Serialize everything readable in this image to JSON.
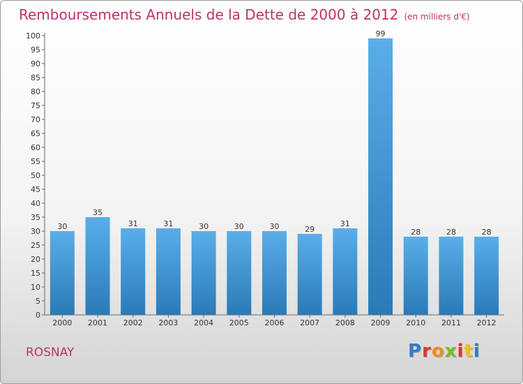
{
  "header": {
    "title": "Remboursements Annuels de la Dette de 2000 à 2012",
    "subtitle": "(en milliers d'€)"
  },
  "footer": {
    "commune": "ROSNAY",
    "logo": "Proxiti"
  },
  "colors": {
    "title": "#c0306a",
    "bar_top": "#5aaee8",
    "bar_bottom": "#2a7ab8",
    "logo_letters": [
      "#2f7dc8",
      "#e2342a",
      "#f08c1a",
      "#7ab829",
      "#e2342a",
      "#f0c01a",
      "#2f7dc8"
    ]
  },
  "chart_data": {
    "type": "bar",
    "title": "Remboursements Annuels de la Dette de 2000 à 2012",
    "subtitle": "(en milliers d'€)",
    "categories": [
      "2000",
      "2001",
      "2002",
      "2003",
      "2004",
      "2005",
      "2006",
      "2007",
      "2008",
      "2009",
      "2010",
      "2011",
      "2012"
    ],
    "values": [
      30,
      35,
      31,
      31,
      30,
      30,
      30,
      29,
      31,
      99,
      28,
      28,
      28
    ],
    "ylim": [
      0,
      100
    ],
    "yticks": [
      0,
      5,
      10,
      15,
      20,
      25,
      30,
      35,
      40,
      45,
      50,
      55,
      60,
      65,
      70,
      75,
      80,
      85,
      90,
      95,
      100
    ],
    "grid": false,
    "legend": "none",
    "data_labels": true
  }
}
